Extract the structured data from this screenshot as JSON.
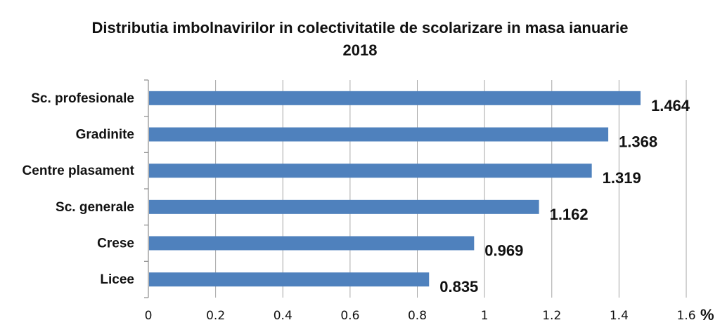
{
  "chart_data": {
    "type": "bar",
    "orientation": "horizontal",
    "title_line1": "Distributia imbolnavirilor  in colectivitatile  de scolarizare  in masa ianuarie",
    "title_line2": "2018",
    "categories": [
      "Sc. profesionale",
      "Gradinite",
      "Centre plasament",
      "Sc. generale",
      "Crese",
      "Licee"
    ],
    "values": [
      1.464,
      1.368,
      1.319,
      1.162,
      0.969,
      0.835
    ],
    "value_labels": [
      "1.464",
      "1.368",
      "1.319",
      "1.162",
      "0.969",
      "0.835"
    ],
    "xlim": [
      0,
      1.6
    ],
    "x_ticks": [
      0,
      0.2,
      0.4,
      0.6,
      0.8,
      1,
      1.2,
      1.4,
      1.6
    ],
    "x_tick_labels": [
      "0",
      "0.2",
      "0.4",
      "0.6",
      "0.8",
      "1",
      "1.2",
      "1.4",
      "1.6"
    ],
    "x_unit": "%",
    "grid": "vertical",
    "bar_color": "#4F81BD",
    "grid_color": "#A6A6A6"
  }
}
